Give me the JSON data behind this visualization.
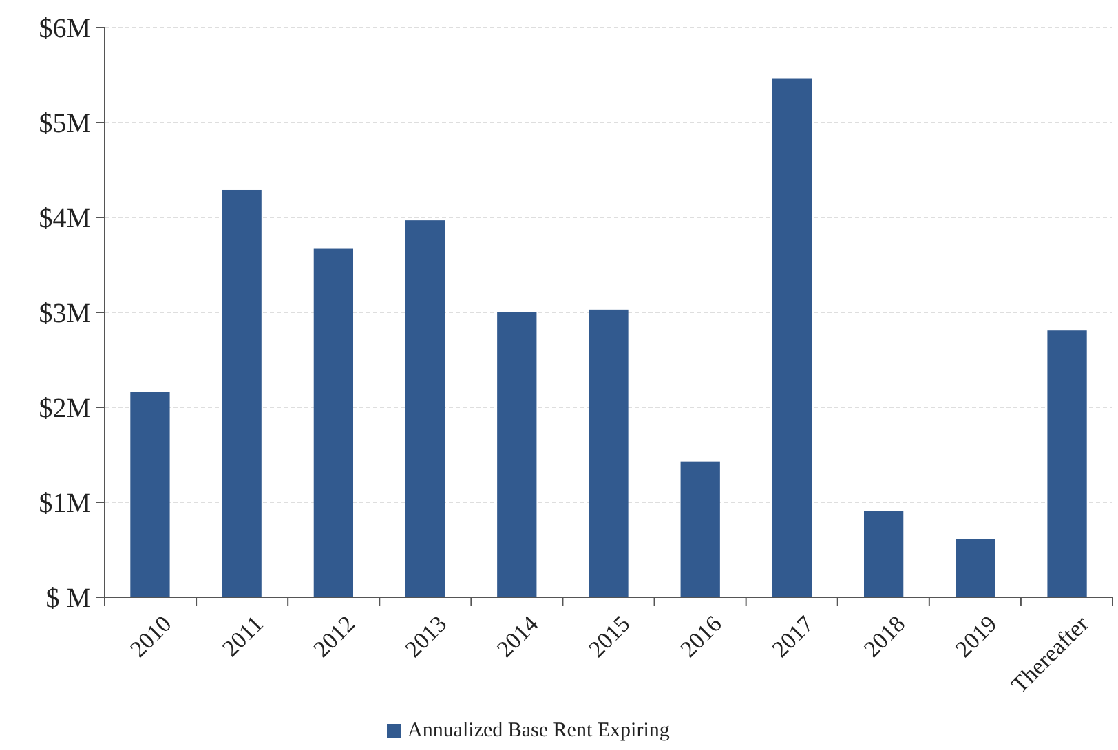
{
  "chart_data": {
    "type": "bar",
    "categories": [
      "2010",
      "2011",
      "2012",
      "2013",
      "2014",
      "2015",
      "2016",
      "2017",
      "2018",
      "2019",
      "Thereafter"
    ],
    "series": [
      {
        "name": "Annualized Base Rent Expiring",
        "color": "#325a8f",
        "values": [
          2.16,
          4.29,
          3.67,
          3.97,
          3.0,
          3.03,
          1.43,
          5.46,
          0.91,
          0.61,
          2.81
        ]
      }
    ],
    "ylim": [
      0,
      6
    ],
    "yticks": [
      {
        "value": 0,
        "label": "$ M"
      },
      {
        "value": 1,
        "label": "$1M"
      },
      {
        "value": 2,
        "label": "$2M"
      },
      {
        "value": 3,
        "label": "$3M"
      },
      {
        "value": 4,
        "label": "$4M"
      },
      {
        "value": 5,
        "label": "$5M"
      },
      {
        "value": 6,
        "label": "$6M"
      }
    ],
    "grid": "y",
    "legend": "bottom"
  }
}
